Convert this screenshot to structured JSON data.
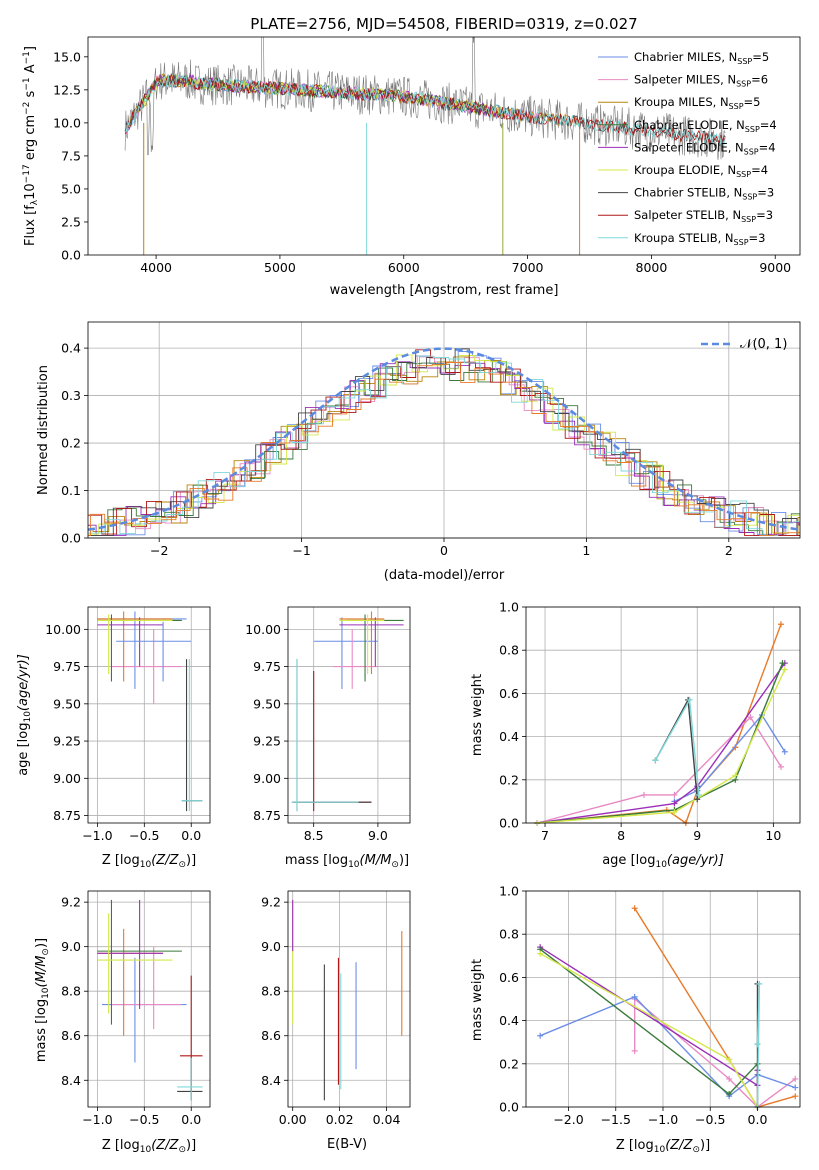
{
  "colors": {
    "Chabrier MILES": "#6b8ee8",
    "Salpeter MILES": "#e88ac4",
    "Kroupa MILES": "#b8860b",
    "Chabrier ELODIE": "#3a7a3a",
    "Salpeter ELODIE": "#9b30b8",
    "Kroupa ELODIE": "#d4e84a",
    "Chabrier STELIB": "#444444",
    "Salpeter STELIB": "#b01818",
    "Kroupa STELIB": "#7fd8d8",
    "orange": "#e87a2a",
    "normal": "#5b8be0"
  },
  "chart_data": [
    {
      "id": "spectrum",
      "type": "line",
      "title": "PLATE=2756, MJD=54508, FIBERID=0319, z=0.027",
      "xlabel": "wavelength [Angstrom, rest frame]",
      "ylabel_main": "Flux [f",
      "ylabel_sub": "λ",
      "ylabel_rest": "10",
      "ylabel_sup1": "−17",
      "ylabel_mid": " erg cm",
      "ylabel_sup2": "−2",
      "ylabel_s": " s",
      "ylabel_sup3": "−1",
      "ylabel_a": " A",
      "ylabel_sup4": "−1",
      "ylabel_end": "]",
      "xlim": [
        3450,
        9200
      ],
      "ylim": [
        0,
        16.5
      ],
      "xticks": [
        "4000",
        "5000",
        "6000",
        "7000",
        "8000",
        "9000"
      ],
      "yticks": [
        "0.0",
        "2.5",
        "5.0",
        "7.5",
        "10.0",
        "12.5",
        "15.0"
      ],
      "legend": [
        {
          "prefix": "Chabrier MILES, N",
          "sub": "SSP",
          "suffix": "=5"
        },
        {
          "prefix": "Salpeter MILES, N",
          "sub": "SSP",
          "suffix": "=6"
        },
        {
          "prefix": "Kroupa MILES, N",
          "sub": "SSP",
          "suffix": "=5"
        },
        {
          "prefix": "Chabrier ELODIE, N",
          "sub": "SSP",
          "suffix": "=4"
        },
        {
          "prefix": "Salpeter ELODIE, N",
          "sub": "SSP",
          "suffix": "=4"
        },
        {
          "prefix": "Kroupa ELODIE, N",
          "sub": "SSP",
          "suffix": "=4"
        },
        {
          "prefix": "Chabrier STELIB, N",
          "sub": "SSP",
          "suffix": "=3"
        },
        {
          "prefix": "Salpeter STELIB, N",
          "sub": "SSP",
          "suffix": "=3"
        },
        {
          "prefix": "Kroupa STELIB, N",
          "sub": "SSP",
          "suffix": "=3"
        }
      ],
      "legend_placement": "top-right"
    },
    {
      "id": "residuals",
      "type": "line",
      "xlabel": "(data-model)/error",
      "ylabel": "Normed distribution",
      "xlim": [
        -2.5,
        2.5
      ],
      "ylim": [
        0,
        0.455
      ],
      "xticks": [
        "−2",
        "−1",
        "0",
        "1",
        "2"
      ],
      "yticks": [
        "0.0",
        "0.1",
        "0.2",
        "0.3",
        "0.4"
      ],
      "legend_label": "𝒩(0, 1)",
      "legend_placement": "top-right",
      "grid": true
    },
    {
      "id": "age-vs-Z",
      "type": "scatter",
      "xlabel_main": "Z [log",
      "xlabel_sub": "10",
      "xlabel_rest": "(Z/Z",
      "xlabel_sub2": "⊙",
      "xlabel_end": ")]",
      "ylabel_main": "age  [log",
      "ylabel_sub": "10",
      "ylabel_rest": "(age/yr)]",
      "xlim": [
        -1.1,
        0.2
      ],
      "ylim": [
        8.7,
        10.15
      ],
      "xticks": [
        "−1.0",
        "−0.5",
        "0.0"
      ],
      "yticks": [
        "8.75",
        "9.00",
        "9.25",
        "9.50",
        "9.75",
        "10.00"
      ],
      "grid": true
    },
    {
      "id": "age-vs-mass",
      "type": "scatter",
      "xlabel_main": "mass [log",
      "xlabel_sub": "10",
      "xlabel_rest": "(M/M",
      "xlabel_sub2": "⊙",
      "xlabel_end": ")]",
      "xlim": [
        8.3,
        9.25
      ],
      "ylim": [
        8.7,
        10.15
      ],
      "xticks": [
        "8.5",
        "9.0"
      ],
      "yticks": [
        "8.75",
        "9.00",
        "9.25",
        "9.50",
        "9.75",
        "10.00"
      ],
      "grid": true
    },
    {
      "id": "weight-vs-age",
      "type": "line",
      "xlabel_main": "age  [log",
      "xlabel_sub": "10",
      "xlabel_rest": "(age/yr)]",
      "ylabel": "mass weight",
      "xlim": [
        6.75,
        10.35
      ],
      "ylim": [
        0,
        1.0
      ],
      "xticks": [
        "7",
        "8",
        "9",
        "10"
      ],
      "yticks": [
        "0.0",
        "0.2",
        "0.4",
        "0.6",
        "0.8",
        "1.0"
      ],
      "grid": true
    },
    {
      "id": "mass-vs-Z",
      "type": "scatter",
      "xlabel_main": "Z [log",
      "xlabel_sub": "10",
      "xlabel_rest": "(Z/Z",
      "xlabel_sub2": "⊙",
      "xlabel_end": ")]",
      "ylabel_main": "mass [log",
      "ylabel_sub": "10",
      "ylabel_rest": "(M/M",
      "ylabel_sub2": "⊙",
      "ylabel_end": ")]",
      "xlim": [
        -1.1,
        0.2
      ],
      "ylim": [
        8.28,
        9.25
      ],
      "xticks": [
        "−1.0",
        "−0.5",
        "0.0"
      ],
      "yticks": [
        "8.4",
        "8.6",
        "8.8",
        "9.0",
        "9.2"
      ],
      "grid": true
    },
    {
      "id": "mass-vs-EBV",
      "type": "scatter",
      "xlabel": "E(B-V)",
      "xlim": [
        -0.002,
        0.05
      ],
      "ylim": [
        8.28,
        9.25
      ],
      "xticks": [
        "0.00",
        "0.02",
        "0.04"
      ],
      "yticks": [
        "8.4",
        "8.6",
        "8.8",
        "9.0",
        "9.2"
      ],
      "grid": true
    },
    {
      "id": "weight-vs-Z",
      "type": "line",
      "xlabel_main": "Z [log",
      "xlabel_sub": "10",
      "xlabel_rest": "(Z/Z",
      "xlabel_sub2": "⊙",
      "xlabel_end": ")]",
      "ylabel": "mass weight",
      "xlim": [
        -2.45,
        0.45
      ],
      "ylim": [
        0,
        1.0
      ],
      "xticks": [
        "−2.0",
        "−1.5",
        "−1.0",
        "−0.5",
        "0.0"
      ],
      "yticks": [
        "0.0",
        "0.2",
        "0.4",
        "0.6",
        "0.8",
        "1.0"
      ],
      "grid": true
    }
  ]
}
